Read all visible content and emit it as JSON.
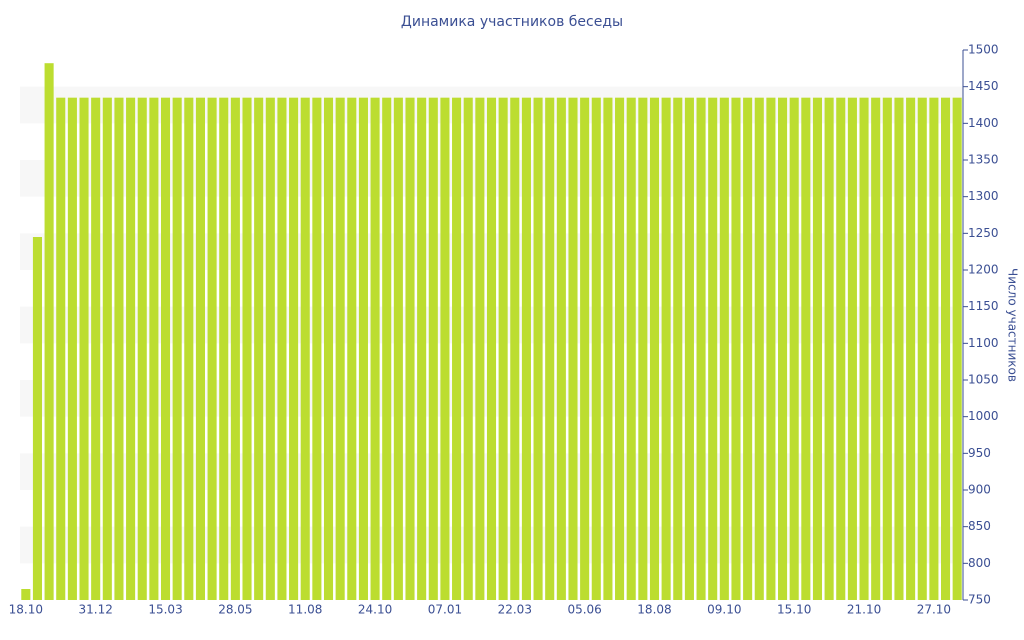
{
  "chart_data": {
    "type": "bar",
    "title": "Динамика участников беседы",
    "y_label": "Число участников",
    "categories": [
      "18.10",
      null,
      null,
      null,
      null,
      null,
      "31.12",
      null,
      null,
      null,
      null,
      null,
      "15.03",
      null,
      null,
      null,
      null,
      null,
      "28.05",
      null,
      null,
      null,
      null,
      null,
      "11.08",
      null,
      null,
      null,
      null,
      null,
      "24.10",
      null,
      null,
      null,
      null,
      null,
      "07.01",
      null,
      null,
      null,
      null,
      null,
      "22.03",
      null,
      null,
      null,
      null,
      null,
      "05.06",
      null,
      null,
      null,
      null,
      null,
      "18.08",
      null,
      null,
      null,
      null,
      null,
      "09.10",
      null,
      null,
      null,
      null,
      null,
      "15.10",
      null,
      null,
      null,
      null,
      null,
      "21.10",
      null,
      null,
      null,
      null,
      null,
      "27.10",
      null,
      null
    ],
    "values": [
      765,
      1245,
      1482,
      1435,
      1435,
      1435,
      1435,
      1435,
      1435,
      1435,
      1435,
      1435,
      1435,
      1435,
      1435,
      1435,
      1435,
      1435,
      1435,
      1435,
      1435,
      1435,
      1435,
      1435,
      1435,
      1435,
      1435,
      1435,
      1435,
      1435,
      1435,
      1435,
      1435,
      1435,
      1435,
      1435,
      1435,
      1435,
      1435,
      1435,
      1435,
      1435,
      1435,
      1435,
      1435,
      1435,
      1435,
      1435,
      1435,
      1435,
      1435,
      1435,
      1435,
      1435,
      1435,
      1435,
      1435,
      1435,
      1435,
      1435,
      1435,
      1435,
      1435,
      1435,
      1435,
      1435,
      1435,
      1435,
      1435,
      1435,
      1435,
      1435,
      1435,
      1435,
      1435,
      1435,
      1435,
      1435,
      1435,
      1435,
      1435
    ],
    "color": "#bcdd30",
    "ylim": [
      750,
      1500
    ],
    "yticks": [
      750,
      800,
      850,
      900,
      950,
      1000,
      1050,
      1100,
      1150,
      1200,
      1250,
      1300,
      1350,
      1400,
      1450,
      1500
    ],
    "grid": true
  }
}
